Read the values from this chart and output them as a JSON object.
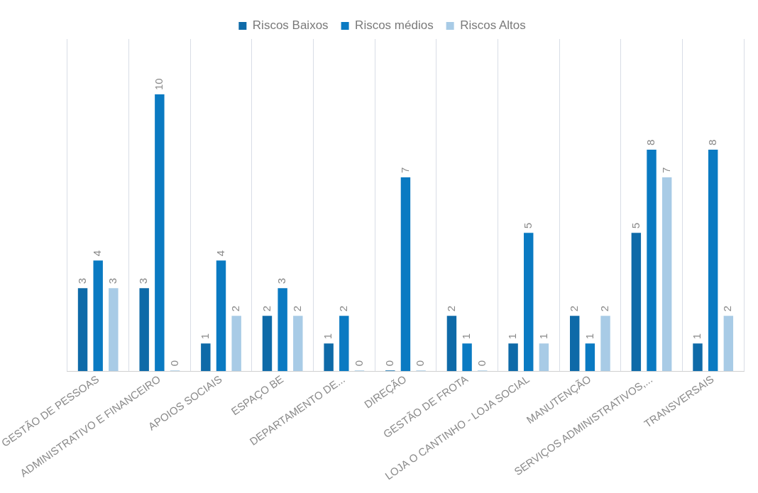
{
  "chart_data": {
    "type": "bar",
    "categories": [
      "GESTÃO DE PESSOAS",
      "ADMINISTRATIVO E FINANCEIRO",
      "APOIOS SOCIAIS",
      "ESPAÇO BE",
      "DEPARTAMENTO DE...",
      "DIREÇÃO",
      "GESTÃO DE FROTA",
      "LOJA O CANTINHO - LOJA SOCIAL",
      "MANUTENÇÃO",
      "SERVIÇOS ADMINISTRATIVOS,...",
      "TRANSVERSAIS"
    ],
    "series": [
      {
        "name": "Riscos Baixos",
        "color": "#0e6aa8",
        "values": [
          3,
          3,
          1,
          2,
          1,
          0,
          2,
          1,
          2,
          5,
          1
        ]
      },
      {
        "name": "Riscos médios",
        "color": "#0a7ac2",
        "values": [
          4,
          10,
          4,
          3,
          2,
          7,
          1,
          5,
          1,
          8,
          8
        ]
      },
      {
        "name": "Riscos Altos",
        "color": "#a8cbe6",
        "values": [
          3,
          0,
          2,
          2,
          0,
          0,
          0,
          1,
          2,
          7,
          2
        ]
      }
    ],
    "data_labels": true,
    "legend": "top",
    "grid": "x",
    "tick_labels": "x"
  }
}
